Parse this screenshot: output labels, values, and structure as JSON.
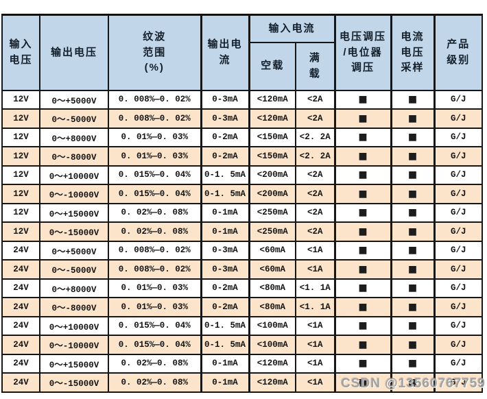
{
  "colors": {
    "header_bg": "#c2d6e9",
    "row_bg": "#ffffff",
    "row_alt_bg": "#fce4ca",
    "border": "#161616",
    "header_text": "#121e29",
    "cell_text": "#141414",
    "watermark_text": "#a2a2a2"
  },
  "table": {
    "header": {
      "input_voltage": "输入\n电压",
      "output_voltage": "输出电压",
      "ripple_range": "纹波\n范围\n(%)",
      "output_current": "输出电\n流",
      "input_current_group": "输入电流",
      "no_load": "空载",
      "full_load": "满\n载",
      "voltage_regulation": "电压调压\n/电位器\n调压",
      "current_voltage_sampling": "电流\n电压\n采样",
      "product_grade": "产品\n级别"
    },
    "square_marker": "■",
    "rows": [
      [
        "12V",
        "0～+5000V",
        "0. 008%—0. 02%",
        "0-3mA",
        "<120mA",
        "<2A",
        "■",
        "■",
        "G/J"
      ],
      [
        "12V",
        "0～-5000V",
        "0. 008%—0. 02%",
        "0-3mA",
        "<120mA",
        "<2A",
        "■",
        "■",
        "G/J"
      ],
      [
        "12V",
        "0～+8000V",
        "0. 01%—0. 03%",
        "0-2mA",
        "<150mA",
        "<2. 2A",
        "■",
        "■",
        "G/J"
      ],
      [
        "12V",
        "0～-8000V",
        "0. 01%—0. 03%",
        "0-2mA",
        "<150mA",
        "<2. 2A",
        "■",
        "■",
        "G/J"
      ],
      [
        "12V",
        "0～+10000V",
        "0. 015%—0. 04%",
        "0-1. 5mA",
        "<200mA",
        "<2A",
        "■",
        "■",
        "G/J"
      ],
      [
        "12V",
        "0～-10000V",
        "0. 015%—0. 04%",
        "0-1. 5mA",
        "<200mA",
        "<2A",
        "■",
        "■",
        "G/J"
      ],
      [
        "12V",
        "0～+15000V",
        "0. 02%—0. 08%",
        "0-1mA",
        "<250mA",
        "<2A",
        "■",
        "■",
        "G/J"
      ],
      [
        "12V",
        "0～-15000V",
        "0. 02%—0. 08%",
        "0-1mA",
        "<250mA",
        "<2A",
        "■",
        "■",
        "G/J"
      ],
      [
        "24V",
        "0～+5000V",
        "0. 008%—0. 02%",
        "0-3mA",
        "<60mA",
        "<1A",
        "■",
        "■",
        "G/J"
      ],
      [
        "24V",
        "0～-5000V",
        "0. 008%—0. 02%",
        "0-3mA",
        "<60mA",
        "<1A",
        "■",
        "■",
        "G/J"
      ],
      [
        "24V",
        "0～+8000V",
        "0. 01%—0. 03%",
        "0-2mA",
        "<80mA",
        "<1. 1A",
        "■",
        "■",
        "G/J"
      ],
      [
        "24V",
        "0～-8000V",
        "0. 01%—0. 03%",
        "0-2mA",
        "<80mA",
        "<1. 1A",
        "■",
        "■",
        "G/J"
      ],
      [
        "24V",
        "0～+10000V",
        "0. 015%—0. 04%",
        "0-1. 5mA",
        "<100mA",
        "<1A",
        "■",
        "■",
        "G/J"
      ],
      [
        "24V",
        "0～-10000V",
        "0. 015%—0. 04%",
        "0-1. 5mA",
        "<100mA",
        "<1A",
        "■",
        "■",
        "G/J"
      ],
      [
        "24V",
        "0～+15000V",
        "0. 02%—0. 08%",
        "0-1mA",
        "<120mA",
        "<1A",
        "■",
        "■",
        "G/J"
      ],
      [
        "24V",
        "0～-15000V",
        "0. 02%—0. 08%",
        "0-1mA",
        "<120mA",
        "<1A",
        "■",
        "■",
        "G/J"
      ]
    ]
  },
  "watermark": {
    "text": "CSDN @13560767759"
  }
}
